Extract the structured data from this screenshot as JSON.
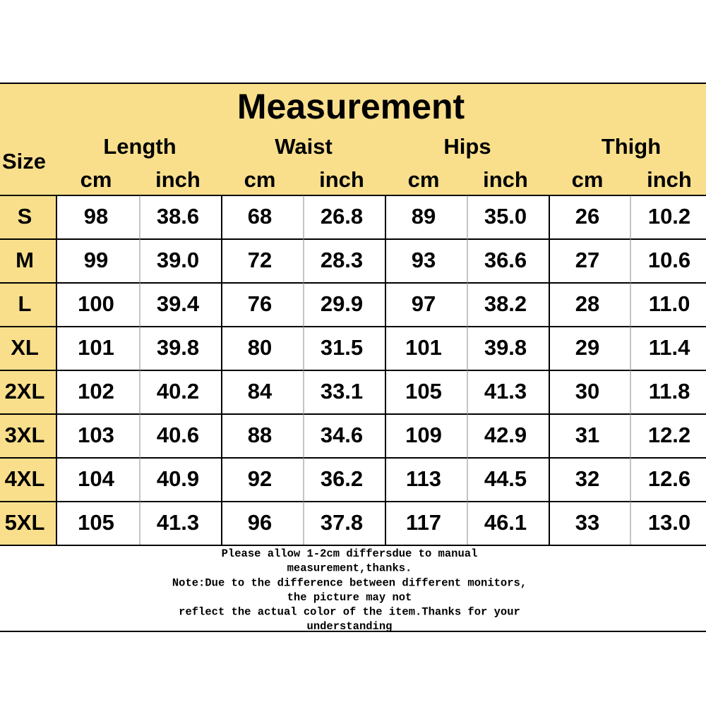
{
  "title": "Measurement",
  "header": {
    "size": "Size",
    "groups": [
      "Length",
      "Waist",
      "Hips",
      "Thigh"
    ],
    "units": [
      "cm",
      "inch",
      "cm",
      "inch",
      "cm",
      "inch",
      "cm",
      "inch"
    ]
  },
  "table": {
    "rows": [
      [
        "S",
        "98",
        "38.6",
        "68",
        "26.8",
        "89",
        "35.0",
        "26",
        "10.2"
      ],
      [
        "M",
        "99",
        "39.0",
        "72",
        "28.3",
        "93",
        "36.6",
        "27",
        "10.6"
      ],
      [
        "L",
        "100",
        "39.4",
        "76",
        "29.9",
        "97",
        "38.2",
        "28",
        "11.0"
      ],
      [
        "XL",
        "101",
        "39.8",
        "80",
        "31.5",
        "101",
        "39.8",
        "29",
        "11.4"
      ],
      [
        "2XL",
        "102",
        "40.2",
        "84",
        "33.1",
        "105",
        "41.3",
        "30",
        "11.8"
      ],
      [
        "3XL",
        "103",
        "40.6",
        "88",
        "34.6",
        "109",
        "42.9",
        "31",
        "12.2"
      ],
      [
        "4XL",
        "104",
        "40.9",
        "92",
        "36.2",
        "113",
        "44.5",
        "32",
        "12.6"
      ],
      [
        "5XL",
        "105",
        "41.3",
        "96",
        "37.8",
        "117",
        "46.1",
        "33",
        "13.0"
      ]
    ]
  },
  "notes": [
    "Please allow 1-2cm differsdue to manual",
    "measurement,thanks.",
    "Note:Due to the difference between different monitors,",
    "the picture may not",
    "reflect the actual color of the item.Thanks for your",
    "understanding"
  ]
}
